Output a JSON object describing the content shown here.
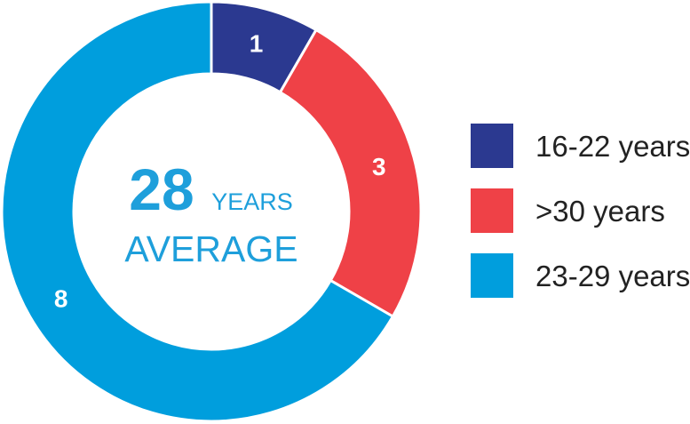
{
  "chart_data": {
    "type": "pie",
    "variant": "donut",
    "categories": [
      "16-22 years",
      ">30 years",
      "23-29 years"
    ],
    "values": [
      1,
      3,
      8
    ],
    "colors": [
      "#2B3990",
      "#EF4147",
      "#009EDD"
    ],
    "data_labels": [
      "1",
      "3",
      "8"
    ],
    "legend_position": "right"
  },
  "center": {
    "value": "28",
    "unit": "YEARS",
    "caption": "AVERAGE",
    "color": "#1E9FDB"
  },
  "legend": {
    "items": [
      {
        "label": "16-22 years",
        "color": "#2B3990"
      },
      {
        "label": ">30 years",
        "color": "#EF4147"
      },
      {
        "label": "23-29 years",
        "color": "#009EDD"
      }
    ]
  }
}
